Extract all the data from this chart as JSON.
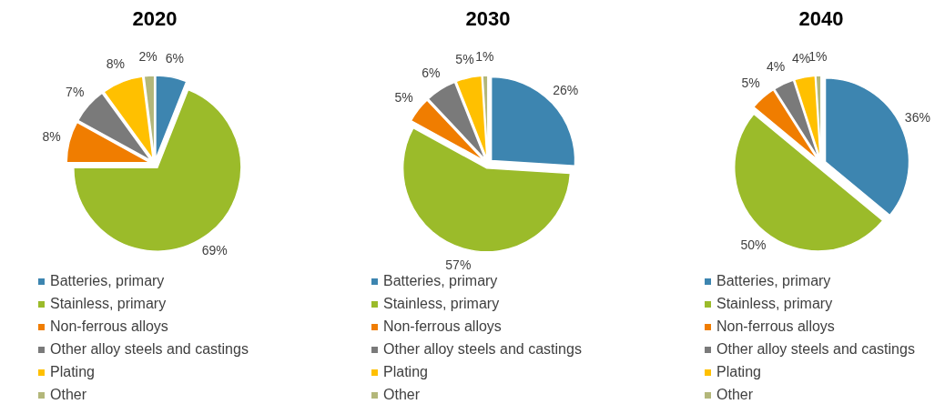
{
  "chart_data": [
    {
      "type": "pie",
      "title": "2020",
      "categories": [
        "Batteries, primary",
        "Stainless, primary",
        "Non-ferrous alloys",
        "Other alloy steels and castings",
        "Plating",
        "Other"
      ],
      "values": [
        6,
        69,
        8,
        7,
        8,
        2
      ],
      "value_labels": [
        "6%",
        "69%",
        "8%",
        "7%",
        "8%",
        "2%"
      ],
      "colors": [
        "#3d85b0",
        "#9bbb2a",
        "#f07d00",
        "#7a7a7a",
        "#ffc000",
        "#b3b77a"
      ],
      "legend": "bottom"
    },
    {
      "type": "pie",
      "title": "2030",
      "categories": [
        "Batteries, primary",
        "Stainless, primary",
        "Non-ferrous alloys",
        "Other alloy steels and castings",
        "Plating",
        "Other"
      ],
      "values": [
        26,
        57,
        5,
        6,
        5,
        1
      ],
      "value_labels": [
        "26%",
        "57%",
        "5%",
        "6%",
        "5%",
        "1%"
      ],
      "colors": [
        "#3d85b0",
        "#9bbb2a",
        "#f07d00",
        "#7a7a7a",
        "#ffc000",
        "#b3b77a"
      ],
      "legend": "bottom"
    },
    {
      "type": "pie",
      "title": "2040",
      "categories": [
        "Batteries, primary",
        "Stainless, primary",
        "Non-ferrous alloys",
        "Other alloy steels and castings",
        "Plating",
        "Other"
      ],
      "values": [
        36,
        50,
        5,
        4,
        4,
        1
      ],
      "value_labels": [
        "36%",
        "50%",
        "5%",
        "4%",
        "4%",
        "1%"
      ],
      "colors": [
        "#3d85b0",
        "#9bbb2a",
        "#f07d00",
        "#7a7a7a",
        "#ffc000",
        "#b3b77a"
      ],
      "legend": "bottom"
    }
  ]
}
